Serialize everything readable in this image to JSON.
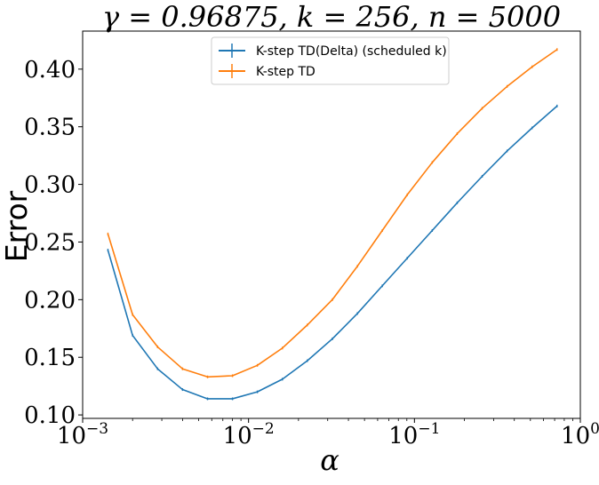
{
  "chart_data": {
    "type": "line",
    "title": "γ = 0.96875, k = 256, n = 5000",
    "xlabel": "α",
    "ylabel": "Error",
    "xscale": "log",
    "xlim": [
      0.001,
      1
    ],
    "ylim": [
      0.097,
      0.433
    ],
    "xticks": [
      {
        "value": 0.001,
        "label": "10",
        "exp": "−3"
      },
      {
        "value": 0.01,
        "label": "10",
        "exp": "−2"
      },
      {
        "value": 0.1,
        "label": "10",
        "exp": "−1"
      },
      {
        "value": 1,
        "label": "10",
        "exp": "0"
      }
    ],
    "yticks": [
      {
        "value": 0.1,
        "label": "0.10"
      },
      {
        "value": 0.15,
        "label": "0.15"
      },
      {
        "value": 0.2,
        "label": "0.20"
      },
      {
        "value": 0.25,
        "label": "0.25"
      },
      {
        "value": 0.3,
        "label": "0.30"
      },
      {
        "value": 0.35,
        "label": "0.35"
      },
      {
        "value": 0.4,
        "label": "0.40"
      }
    ],
    "grid": false,
    "legend_position": "top-center",
    "x": [
      0.00142,
      0.002,
      0.00283,
      0.004,
      0.00566,
      0.008,
      0.0113,
      0.016,
      0.0226,
      0.032,
      0.0453,
      0.064,
      0.0905,
      0.128,
      0.181,
      0.256,
      0.362,
      0.512,
      0.724
    ],
    "series": [
      {
        "name": "K-step TD(Delta) (scheduled k)",
        "color": "#1f77b4",
        "values": [
          0.243,
          0.169,
          0.14,
          0.122,
          0.114,
          0.114,
          0.12,
          0.131,
          0.147,
          0.166,
          0.188,
          0.212,
          0.236,
          0.26,
          0.284,
          0.307,
          0.329,
          0.349,
          0.368
        ]
      },
      {
        "name": "K-step TD",
        "color": "#ff7f0e",
        "values": [
          0.257,
          0.187,
          0.159,
          0.14,
          0.133,
          0.134,
          0.143,
          0.158,
          0.178,
          0.2,
          0.229,
          0.26,
          0.291,
          0.319,
          0.344,
          0.366,
          0.385,
          0.402,
          0.417
        ]
      }
    ]
  }
}
